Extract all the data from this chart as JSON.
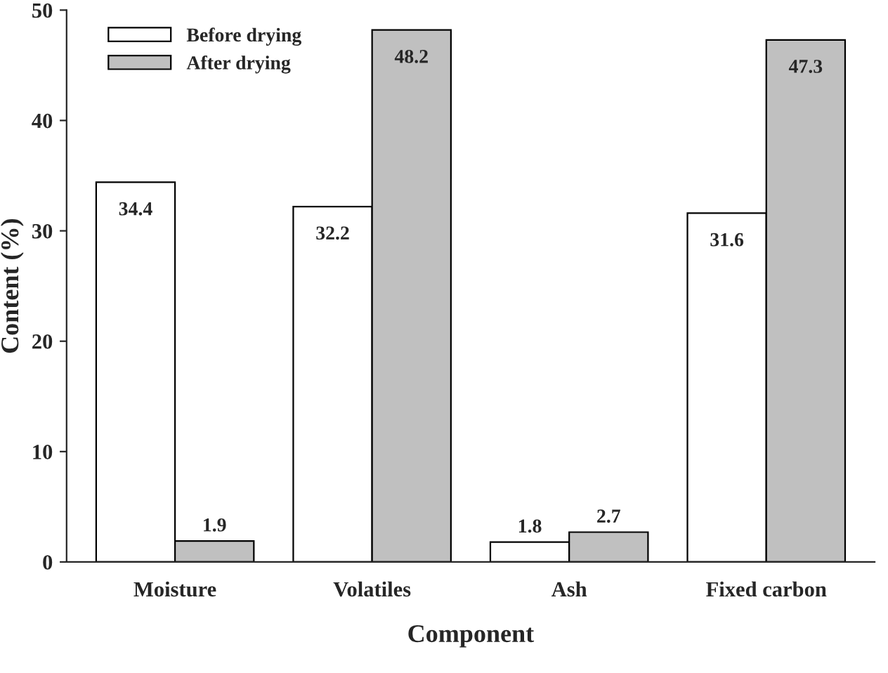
{
  "chart_data": {
    "type": "bar",
    "xlabel": "Component",
    "ylabel": "Content (%)",
    "categories": [
      "Moisture",
      "Volatiles",
      "Ash",
      "Fixed carbon"
    ],
    "series": [
      {
        "name": "Before drying",
        "color": "#ffffff",
        "values": [
          34.4,
          32.2,
          1.8,
          31.6
        ]
      },
      {
        "name": "After drying",
        "color": "#c0c0c0",
        "values": [
          1.9,
          48.2,
          2.7,
          47.3
        ]
      }
    ],
    "ylim": [
      0,
      50
    ],
    "yticks": [
      0,
      10,
      20,
      30,
      40,
      50
    ],
    "grid": false,
    "legend": "top left",
    "data_labels": true
  }
}
